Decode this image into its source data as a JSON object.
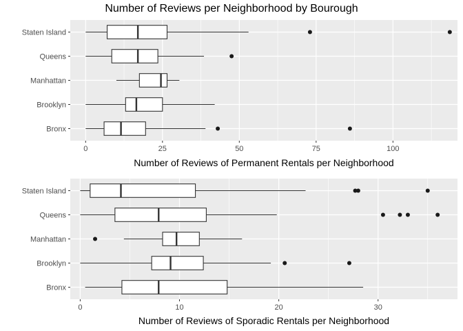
{
  "title": "Number of Reviews per Neighborhood by Bourough",
  "colors": {
    "panel_background": "#ebebeb",
    "grid": "#ffffff",
    "box_fill": "#ffffff",
    "box_stroke": "#333333",
    "outlier": "#1a1a1a",
    "axis_text": "#4d4d4d",
    "label_text": "#000000"
  },
  "chart_data": [
    {
      "type": "boxplot",
      "orientation": "horizontal",
      "xlabel": "Number of Reviews of Permanent Rentals per Neighborhood",
      "xlim": [
        -5,
        121
      ],
      "xticks": [
        0,
        25,
        50,
        75,
        100
      ],
      "grid": true,
      "categories": [
        "Bronx",
        "Brooklyn",
        "Manhattan",
        "Queens",
        "Staten Island"
      ],
      "boxes": [
        {
          "name": "Bronx",
          "whisker_low": 0,
          "q1": 6,
          "median": 11.5,
          "q3": 19.5,
          "whisker_high": 39,
          "outliers": [
            43,
            86
          ]
        },
        {
          "name": "Brooklyn",
          "whisker_low": 0,
          "q1": 13,
          "median": 16.5,
          "q3": 25,
          "whisker_high": 42,
          "outliers": []
        },
        {
          "name": "Manhattan",
          "whisker_low": 10,
          "q1": 17.5,
          "median": 24.5,
          "q3": 26.5,
          "whisker_high": 30.5,
          "outliers": []
        },
        {
          "name": "Queens",
          "whisker_low": 0,
          "q1": 8.5,
          "median": 17,
          "q3": 23.5,
          "whisker_high": 38.5,
          "outliers": [
            47.5
          ]
        },
        {
          "name": "Staten Island",
          "whisker_low": 0,
          "q1": 7,
          "median": 17,
          "q3": 26.5,
          "whisker_high": 53,
          "outliers": [
            73,
            118.5
          ]
        }
      ]
    },
    {
      "type": "boxplot",
      "orientation": "horizontal",
      "xlabel": "Number of Reviews of Sporadic Rentals per Neighborhood",
      "xlim": [
        -1,
        38
      ],
      "xticks": [
        0,
        10,
        20,
        30
      ],
      "grid": true,
      "categories": [
        "Bronx",
        "Brooklyn",
        "Manhattan",
        "Queens",
        "Staten Island"
      ],
      "boxes": [
        {
          "name": "Bronx",
          "whisker_low": 0.5,
          "q1": 4.2,
          "median": 7.9,
          "q3": 14.8,
          "whisker_high": 28.5,
          "outliers": []
        },
        {
          "name": "Brooklyn",
          "whisker_low": 0,
          "q1": 7.2,
          "median": 9.1,
          "q3": 12.4,
          "whisker_high": 19.2,
          "outliers": [
            20.6,
            27.1
          ]
        },
        {
          "name": "Manhattan",
          "whisker_low": 4.4,
          "q1": 8.3,
          "median": 9.7,
          "q3": 12.0,
          "whisker_high": 16.3,
          "outliers": [
            1.5
          ]
        },
        {
          "name": "Queens",
          "whisker_low": 0,
          "q1": 3.5,
          "median": 7.9,
          "q3": 12.7,
          "whisker_high": 19.8,
          "outliers": [
            30.5,
            32.2,
            33.0,
            36.0
          ]
        },
        {
          "name": "Staten Island",
          "whisker_low": 0,
          "q1": 1.0,
          "median": 4.1,
          "q3": 11.6,
          "whisker_high": 22.7,
          "outliers": [
            27.7,
            28.0,
            35.0
          ]
        }
      ]
    }
  ]
}
